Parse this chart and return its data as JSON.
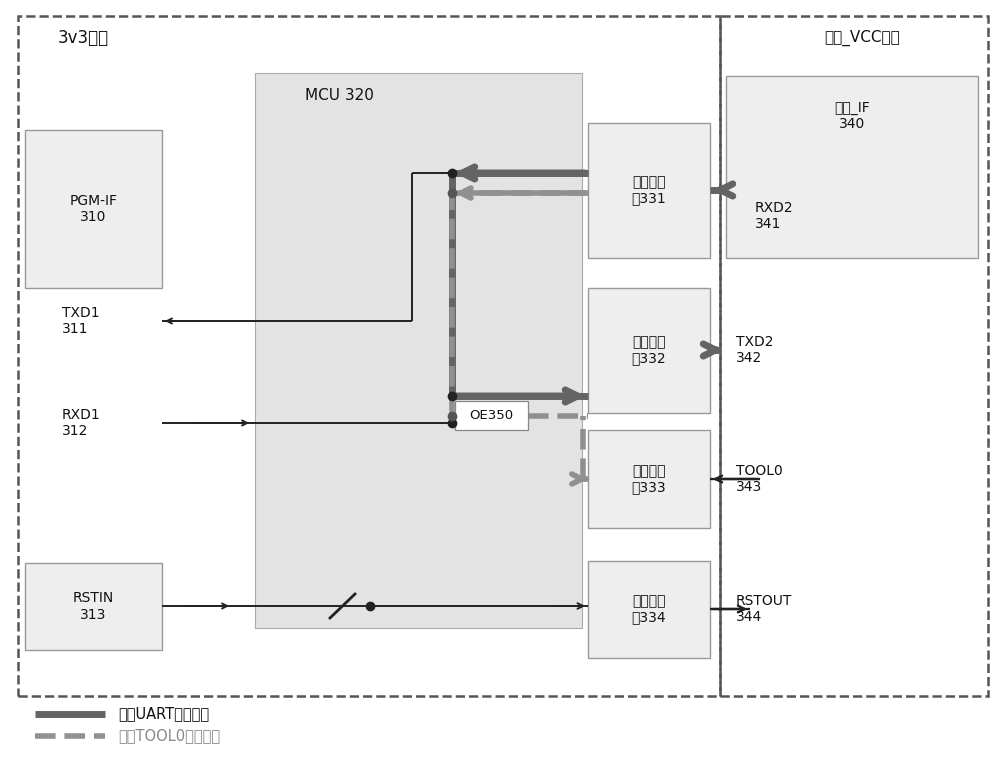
{
  "fig_width": 10.0,
  "fig_height": 7.58,
  "bg": "#ffffff",
  "label_3v3": "3v3系统",
  "label_vcc": "目标_VCC系统",
  "mcu_label": "MCU 320",
  "pgm_if_label": "PGM-IF\n310",
  "txd1_label": "TXD1\n311",
  "rxd1_label": "RXD1\n312",
  "rstin_label": "RSTIN\n313",
  "conv331_label": "电平转换\n器331",
  "conv332_label": "电平转换\n器332",
  "conv333_label": "电平转换\n器333",
  "conv334_label": "电平转换\n器334",
  "target_if_label": "目标_IF\n340",
  "rxd2_label": "RXD2\n341",
  "txd2_label": "TXD2\n342",
  "tool0_label": "TOOL0\n343",
  "rstout_label": "RSTOUT\n344",
  "oe350_label": "OE350",
  "legend_thick": "双线UART编程通路",
  "legend_dashed": "单线TOOL0编程通路",
  "thick_color": "#646464",
  "dashed_color": "#909090",
  "thin_color": "#222222",
  "box_gray": "#e6e6e6",
  "box_light": "#eeeeee",
  "border_dash": "#555555"
}
